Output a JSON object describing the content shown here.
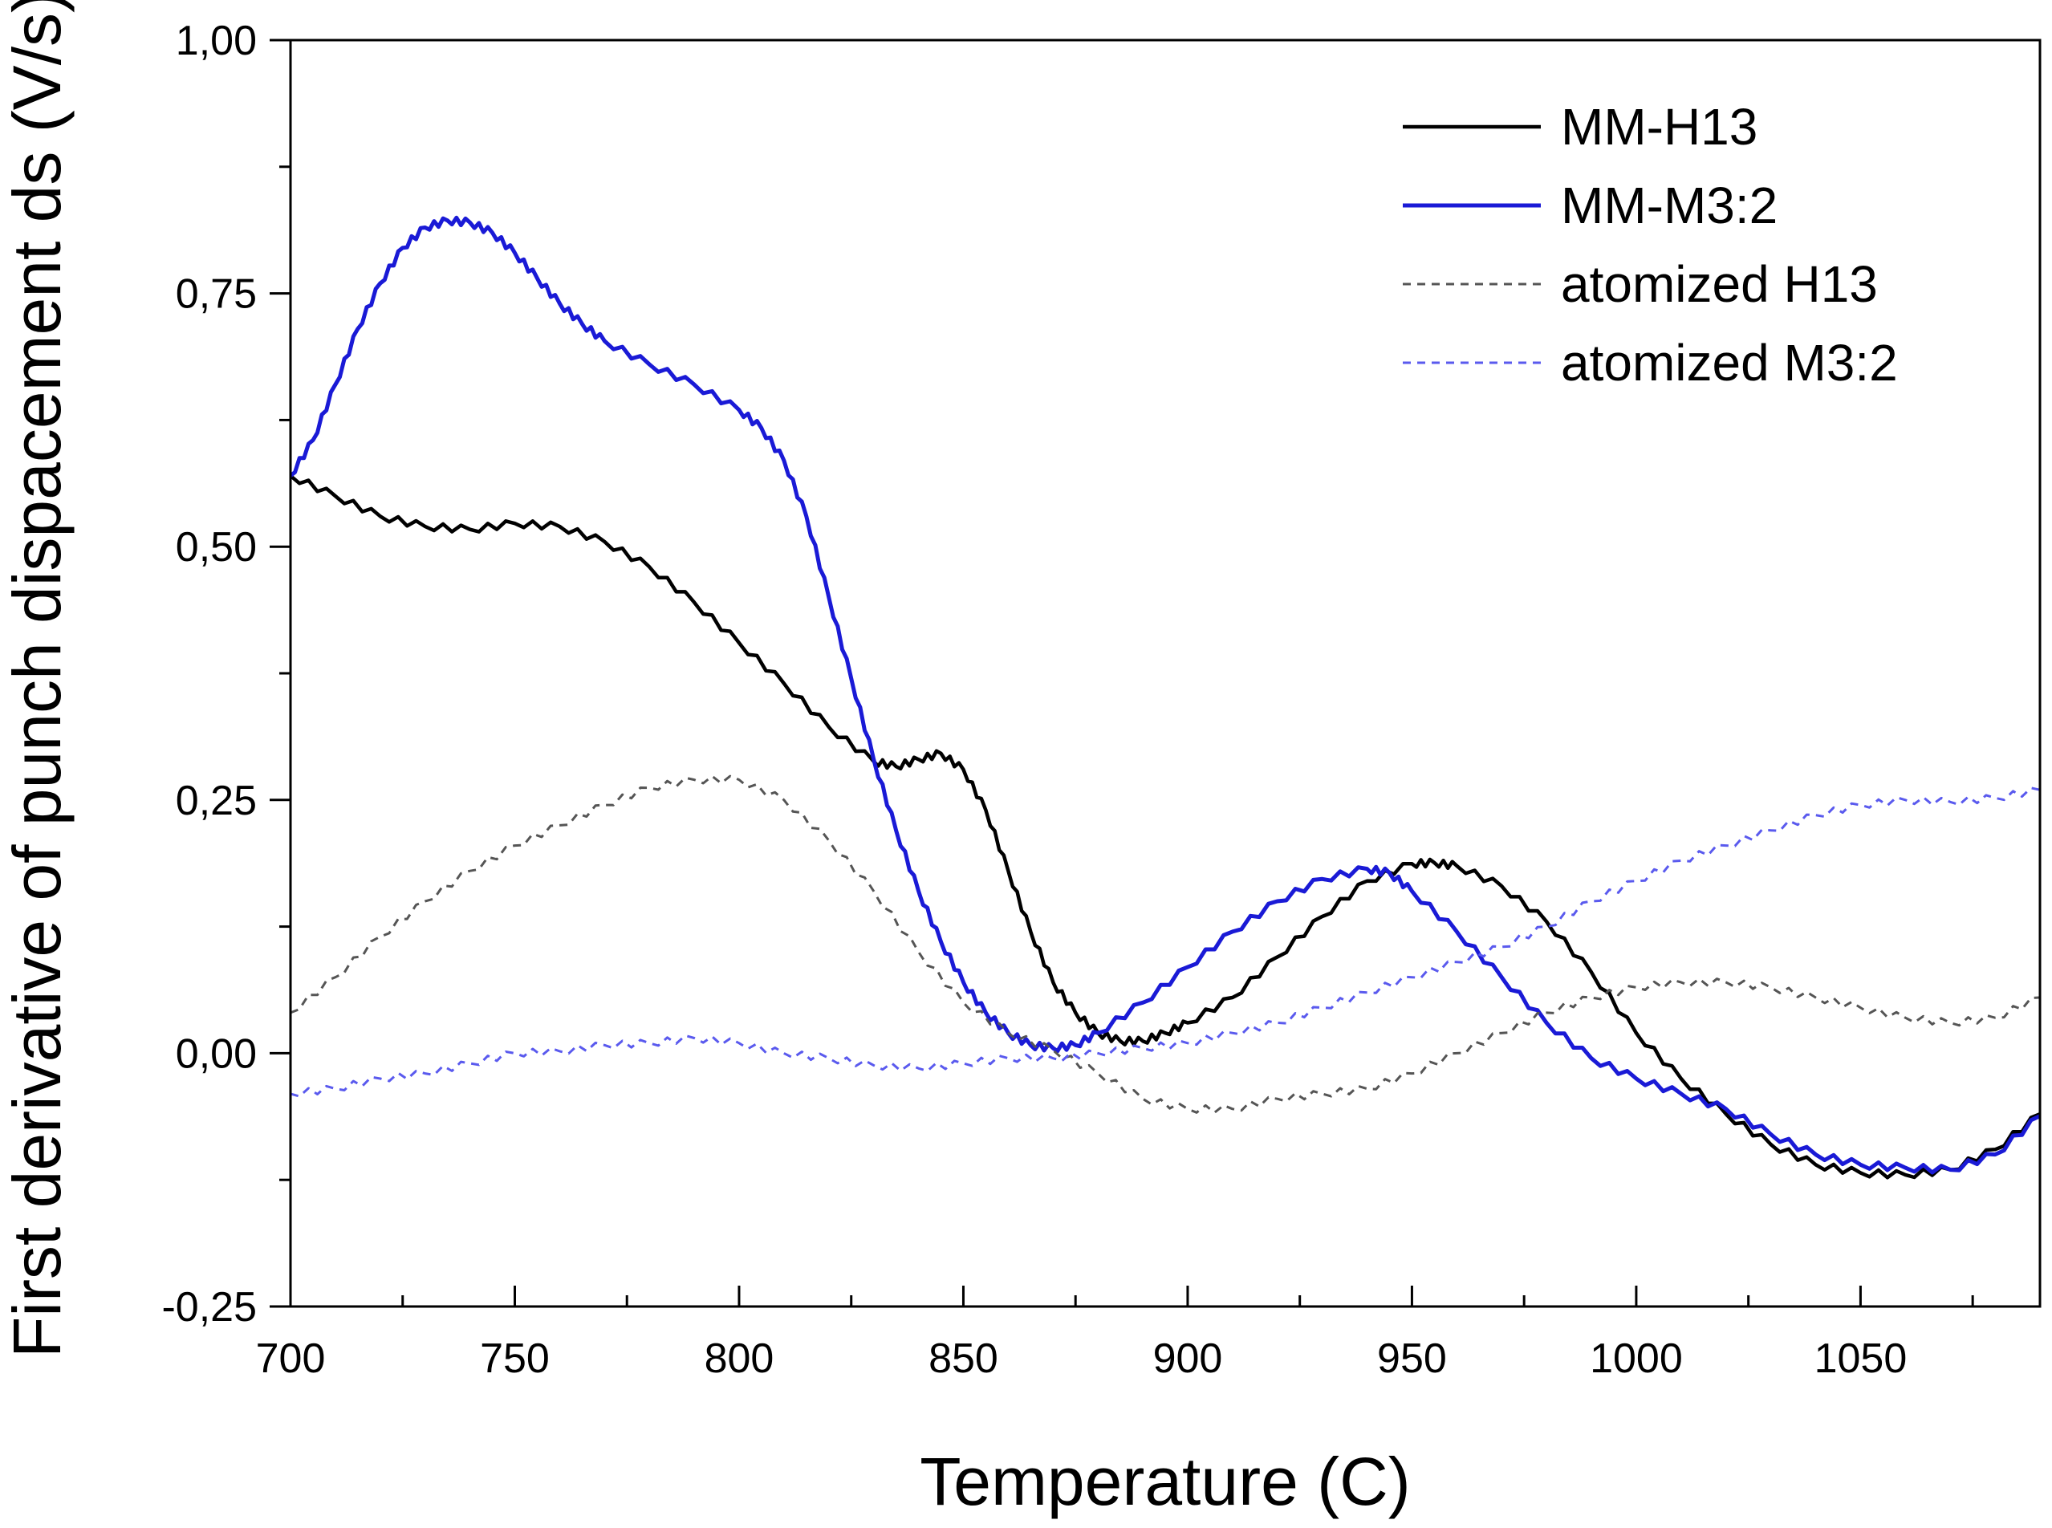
{
  "chart_data": {
    "type": "line",
    "title": "",
    "xlabel": "Temperature (C)",
    "ylabel": "First derivative of punch dispacement ds (V/s)",
    "xlim": [
      700,
      1090
    ],
    "ylim": [
      -0.25,
      1.0
    ],
    "x_ticks": [
      700,
      750,
      800,
      850,
      900,
      950,
      1000,
      1050
    ],
    "x_tick_labels": [
      "700",
      "750",
      "800",
      "850",
      "900",
      "950",
      "1000",
      "1050"
    ],
    "y_ticks": [
      -0.25,
      0.0,
      0.25,
      0.5,
      0.75,
      1.0
    ],
    "y_tick_labels": [
      "-0,25",
      "0,00",
      "0,25",
      "0,50",
      "0,75",
      "1,00"
    ],
    "legend_position": "top-right",
    "grid": false,
    "series": [
      {
        "name": "MM-H13",
        "color": "#000000",
        "style": "solid",
        "points": [
          [
            700,
            0.57
          ],
          [
            710,
            0.55
          ],
          [
            720,
            0.53
          ],
          [
            730,
            0.52
          ],
          [
            740,
            0.517
          ],
          [
            750,
            0.523
          ],
          [
            760,
            0.52
          ],
          [
            770,
            0.505
          ],
          [
            780,
            0.48
          ],
          [
            790,
            0.445
          ],
          [
            800,
            0.405
          ],
          [
            810,
            0.365
          ],
          [
            820,
            0.322
          ],
          [
            830,
            0.288
          ],
          [
            835,
            0.283
          ],
          [
            840,
            0.29
          ],
          [
            845,
            0.296
          ],
          [
            850,
            0.28
          ],
          [
            855,
            0.24
          ],
          [
            860,
            0.18
          ],
          [
            865,
            0.12
          ],
          [
            870,
            0.07
          ],
          [
            875,
            0.04
          ],
          [
            880,
            0.02
          ],
          [
            885,
            0.012
          ],
          [
            890,
            0.012
          ],
          [
            895,
            0.02
          ],
          [
            900,
            0.03
          ],
          [
            910,
            0.055
          ],
          [
            920,
            0.095
          ],
          [
            930,
            0.135
          ],
          [
            940,
            0.17
          ],
          [
            950,
            0.187
          ],
          [
            955,
            0.188
          ],
          [
            960,
            0.185
          ],
          [
            970,
            0.165
          ],
          [
            980,
            0.13
          ],
          [
            990,
            0.08
          ],
          [
            1000,
            0.02
          ],
          [
            1010,
            -0.025
          ],
          [
            1020,
            -0.06
          ],
          [
            1030,
            -0.09
          ],
          [
            1040,
            -0.11
          ],
          [
            1050,
            -0.118
          ],
          [
            1060,
            -0.12
          ],
          [
            1070,
            -0.115
          ],
          [
            1080,
            -0.095
          ],
          [
            1090,
            -0.06
          ]
        ]
      },
      {
        "name": "MM-M3:2",
        "color": "#1a1ad6",
        "style": "solid",
        "points": [
          [
            700,
            0.57
          ],
          [
            705,
            0.605
          ],
          [
            710,
            0.66
          ],
          [
            715,
            0.715
          ],
          [
            720,
            0.76
          ],
          [
            725,
            0.795
          ],
          [
            730,
            0.815
          ],
          [
            735,
            0.822
          ],
          [
            740,
            0.82
          ],
          [
            745,
            0.81
          ],
          [
            750,
            0.79
          ],
          [
            755,
            0.765
          ],
          [
            760,
            0.74
          ],
          [
            765,
            0.72
          ],
          [
            770,
            0.703
          ],
          [
            780,
            0.68
          ],
          [
            790,
            0.66
          ],
          [
            800,
            0.635
          ],
          [
            805,
            0.617
          ],
          [
            810,
            0.585
          ],
          [
            815,
            0.53
          ],
          [
            820,
            0.45
          ],
          [
            825,
            0.37
          ],
          [
            830,
            0.29
          ],
          [
            835,
            0.22
          ],
          [
            840,
            0.16
          ],
          [
            845,
            0.11
          ],
          [
            850,
            0.07
          ],
          [
            855,
            0.04
          ],
          [
            860,
            0.02
          ],
          [
            865,
            0.008
          ],
          [
            870,
            0.005
          ],
          [
            875,
            0.008
          ],
          [
            880,
            0.02
          ],
          [
            890,
            0.05
          ],
          [
            900,
            0.085
          ],
          [
            910,
            0.12
          ],
          [
            920,
            0.15
          ],
          [
            930,
            0.172
          ],
          [
            940,
            0.182
          ],
          [
            945,
            0.178
          ],
          [
            950,
            0.16
          ],
          [
            960,
            0.12
          ],
          [
            970,
            0.075
          ],
          [
            980,
            0.03
          ],
          [
            990,
            -0.005
          ],
          [
            1000,
            -0.025
          ],
          [
            1010,
            -0.04
          ],
          [
            1020,
            -0.055
          ],
          [
            1030,
            -0.08
          ],
          [
            1040,
            -0.1
          ],
          [
            1050,
            -0.11
          ],
          [
            1060,
            -0.113
          ],
          [
            1070,
            -0.115
          ],
          [
            1080,
            -0.1
          ],
          [
            1090,
            -0.062
          ]
        ]
      },
      {
        "name": "atomized H13",
        "color": "#555555",
        "style": "dashed",
        "points": [
          [
            700,
            0.04
          ],
          [
            710,
            0.075
          ],
          [
            720,
            0.115
          ],
          [
            730,
            0.15
          ],
          [
            740,
            0.18
          ],
          [
            750,
            0.205
          ],
          [
            760,
            0.225
          ],
          [
            770,
            0.245
          ],
          [
            780,
            0.262
          ],
          [
            790,
            0.27
          ],
          [
            800,
            0.27
          ],
          [
            810,
            0.25
          ],
          [
            820,
            0.21
          ],
          [
            830,
            0.16
          ],
          [
            840,
            0.1
          ],
          [
            850,
            0.05
          ],
          [
            860,
            0.02
          ],
          [
            870,
            0.003
          ],
          [
            880,
            -0.02
          ],
          [
            890,
            -0.045
          ],
          [
            900,
            -0.055
          ],
          [
            910,
            -0.055
          ],
          [
            920,
            -0.045
          ],
          [
            930,
            -0.04
          ],
          [
            940,
            -0.035
          ],
          [
            950,
            -0.02
          ],
          [
            960,
            0.0
          ],
          [
            970,
            0.02
          ],
          [
            980,
            0.04
          ],
          [
            990,
            0.055
          ],
          [
            1000,
            0.065
          ],
          [
            1010,
            0.07
          ],
          [
            1020,
            0.07
          ],
          [
            1030,
            0.065
          ],
          [
            1040,
            0.055
          ],
          [
            1050,
            0.045
          ],
          [
            1060,
            0.035
          ],
          [
            1070,
            0.03
          ],
          [
            1080,
            0.035
          ],
          [
            1090,
            0.055
          ]
        ]
      },
      {
        "name": "atomized M3:2",
        "color": "#5a5aee",
        "style": "dashed",
        "points": [
          [
            700,
            -0.04
          ],
          [
            710,
            -0.035
          ],
          [
            720,
            -0.025
          ],
          [
            730,
            -0.02
          ],
          [
            740,
            -0.01
          ],
          [
            750,
            0.0
          ],
          [
            760,
            0.002
          ],
          [
            770,
            0.008
          ],
          [
            780,
            0.01
          ],
          [
            790,
            0.015
          ],
          [
            800,
            0.01
          ],
          [
            810,
            0.0
          ],
          [
            820,
            -0.005
          ],
          [
            830,
            -0.012
          ],
          [
            840,
            -0.015
          ],
          [
            850,
            -0.01
          ],
          [
            860,
            -0.005
          ],
          [
            870,
            -0.005
          ],
          [
            880,
            0.0
          ],
          [
            890,
            0.005
          ],
          [
            900,
            0.01
          ],
          [
            910,
            0.02
          ],
          [
            920,
            0.03
          ],
          [
            930,
            0.045
          ],
          [
            940,
            0.06
          ],
          [
            950,
            0.075
          ],
          [
            960,
            0.09
          ],
          [
            970,
            0.105
          ],
          [
            980,
            0.125
          ],
          [
            990,
            0.15
          ],
          [
            1000,
            0.17
          ],
          [
            1010,
            0.19
          ],
          [
            1020,
            0.205
          ],
          [
            1030,
            0.22
          ],
          [
            1040,
            0.235
          ],
          [
            1050,
            0.245
          ],
          [
            1060,
            0.25
          ],
          [
            1070,
            0.248
          ],
          [
            1080,
            0.252
          ],
          [
            1090,
            0.26
          ]
        ]
      }
    ]
  }
}
